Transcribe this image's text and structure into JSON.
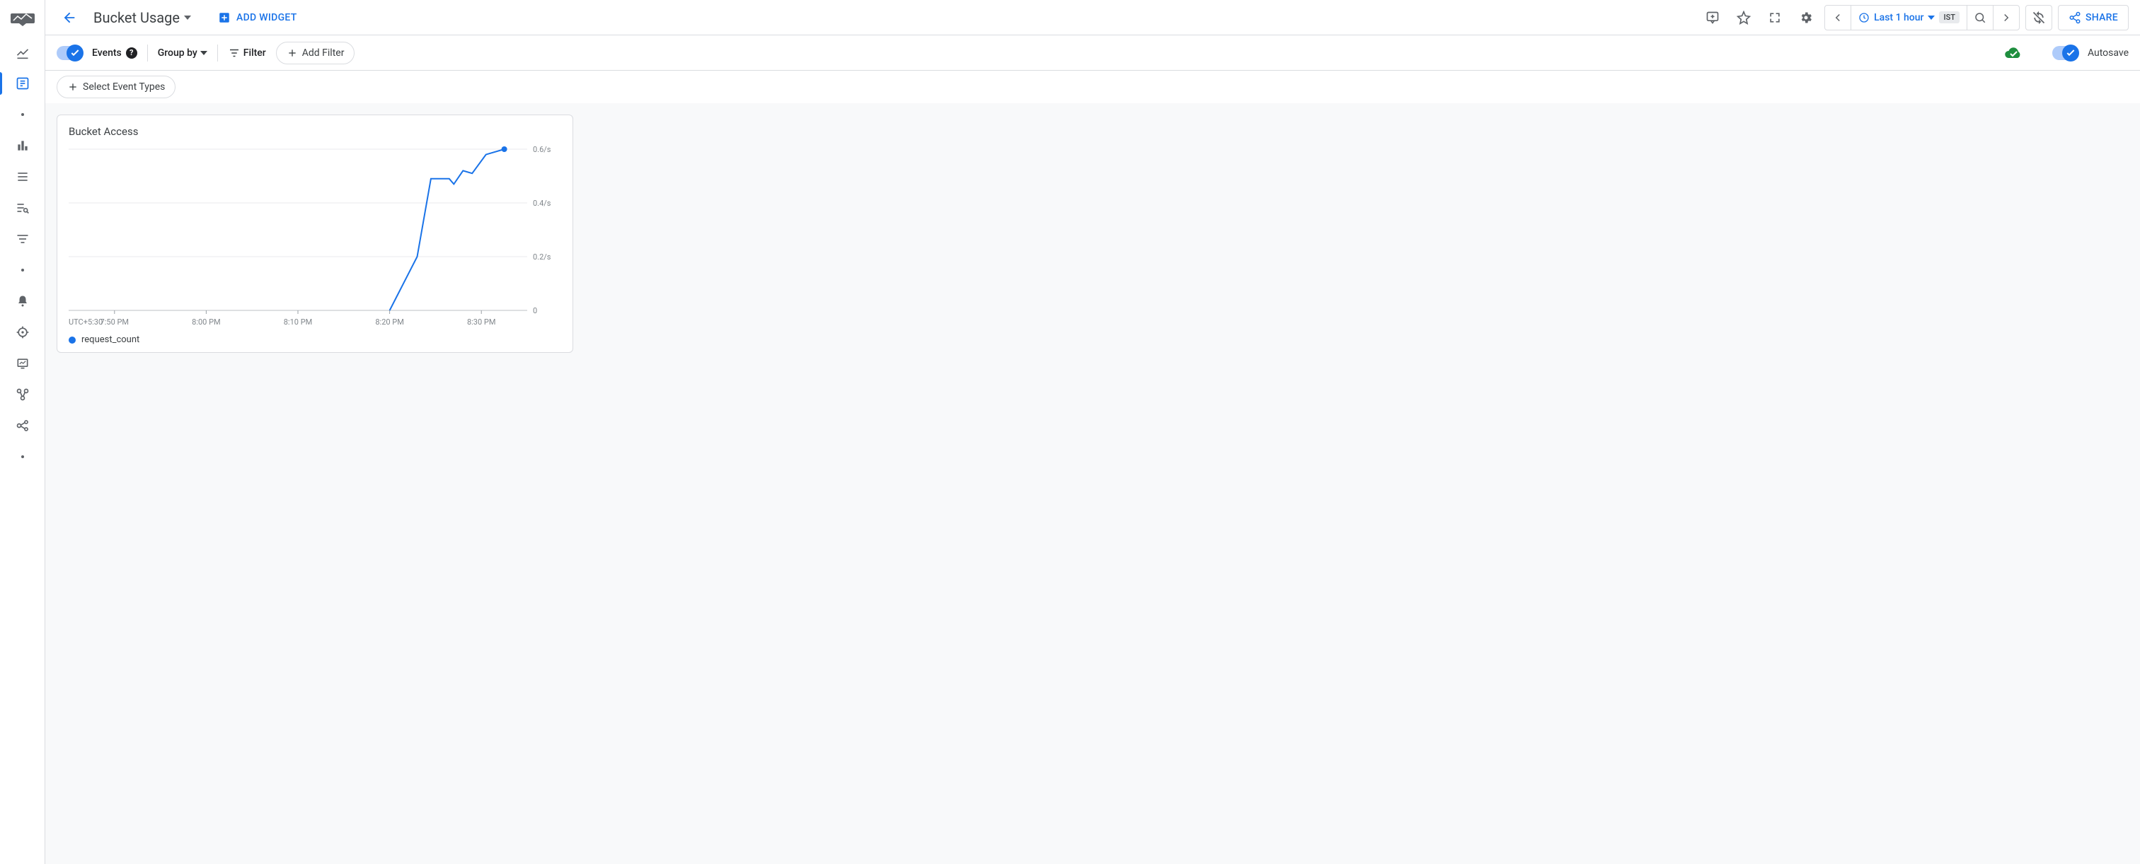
{
  "header": {
    "title": "Bucket Usage",
    "add_widget": "ADD WIDGET",
    "time_range": "Last 1 hour",
    "timezone": "IST",
    "share": "SHARE"
  },
  "filterbar": {
    "events_label": "Events",
    "group_by": "Group by",
    "filter": "Filter",
    "add_filter": "Add Filter",
    "autosave": "Autosave"
  },
  "filterbar2": {
    "select_event_types": "Select Event Types"
  },
  "colors": {
    "primary": "#1a73e8",
    "grid": "#e8eaed",
    "axis_text": "#80868b",
    "baseline": "#bdc1c6",
    "canvas_bg": "#f8f9fa",
    "success": "#1e8e3e"
  },
  "widget": {
    "title": "Bucket Access",
    "chart": {
      "type": "line",
      "series_name": "request_count",
      "series_color": "#1a73e8",
      "marker_last": true,
      "x_timezone_label": "UTC+5:30",
      "x_ticks": [
        "7:50 PM",
        "8:00 PM",
        "8:10 PM",
        "8:20 PM",
        "8:30 PM"
      ],
      "y_ticks": [
        {
          "v": 0,
          "label": "0"
        },
        {
          "v": 0.2,
          "label": "0.2/s"
        },
        {
          "v": 0.4,
          "label": "0.4/s"
        },
        {
          "v": 0.6,
          "label": "0.6/s"
        }
      ],
      "y_min": 0,
      "y_max": 0.6,
      "x_domain_minutes": [
        0,
        50
      ],
      "points": [
        {
          "t": 35.0,
          "v": 0.0
        },
        {
          "t": 38.0,
          "v": 0.2
        },
        {
          "t": 39.5,
          "v": 0.49
        },
        {
          "t": 41.5,
          "v": 0.49
        },
        {
          "t": 42.0,
          "v": 0.47
        },
        {
          "t": 43.0,
          "v": 0.52
        },
        {
          "t": 44.0,
          "v": 0.51
        },
        {
          "t": 45.5,
          "v": 0.58
        },
        {
          "t": 47.5,
          "v": 0.6
        }
      ]
    }
  }
}
